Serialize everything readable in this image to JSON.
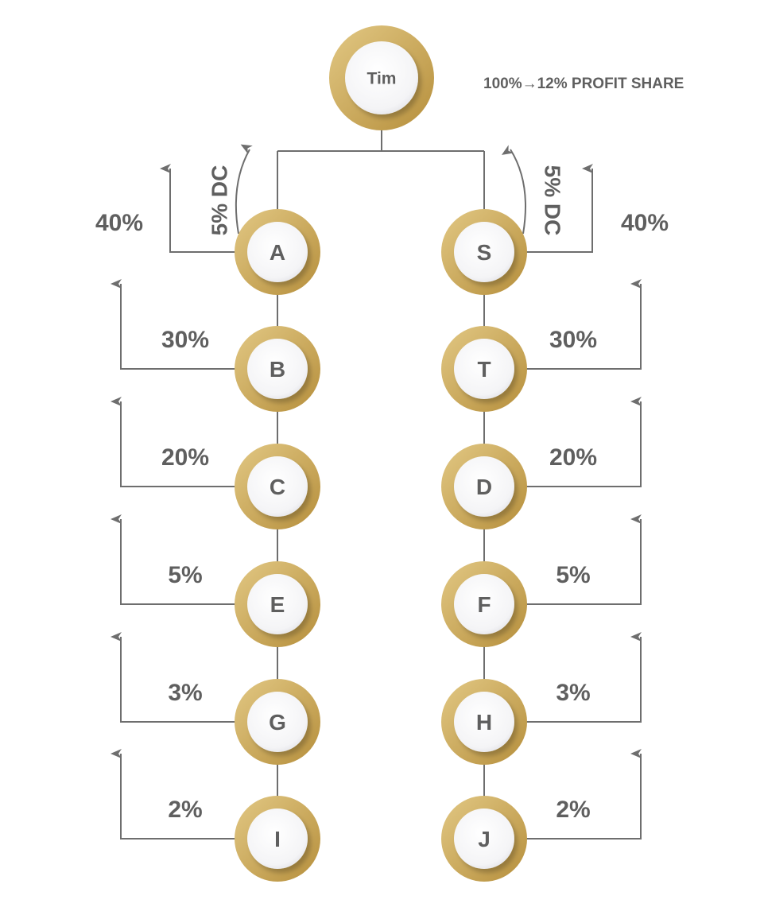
{
  "header": {
    "profit_share_label": "100%→12% PROFIT SHARE"
  },
  "colors": {
    "gold_light": "#dcc078",
    "gold_dark": "#b8923e",
    "text": "#5f5f5f",
    "line": "#6e6e6e",
    "disc": "#ffffff"
  },
  "root": {
    "label": "Tim"
  },
  "left": {
    "dc_label": "5% DC",
    "nodes": [
      {
        "label": "A",
        "share": "40%"
      },
      {
        "label": "B",
        "share": "30%"
      },
      {
        "label": "C",
        "share": "20%"
      },
      {
        "label": "E",
        "share": "5%"
      },
      {
        "label": "G",
        "share": "3%"
      },
      {
        "label": "I",
        "share": "2%"
      }
    ]
  },
  "right": {
    "dc_label": "5% DC",
    "nodes": [
      {
        "label": "S",
        "share": "40%"
      },
      {
        "label": "T",
        "share": "30%"
      },
      {
        "label": "D",
        "share": "20%"
      },
      {
        "label": "F",
        "share": "5%"
      },
      {
        "label": "H",
        "share": "3%"
      },
      {
        "label": "J",
        "share": "2%"
      }
    ]
  }
}
